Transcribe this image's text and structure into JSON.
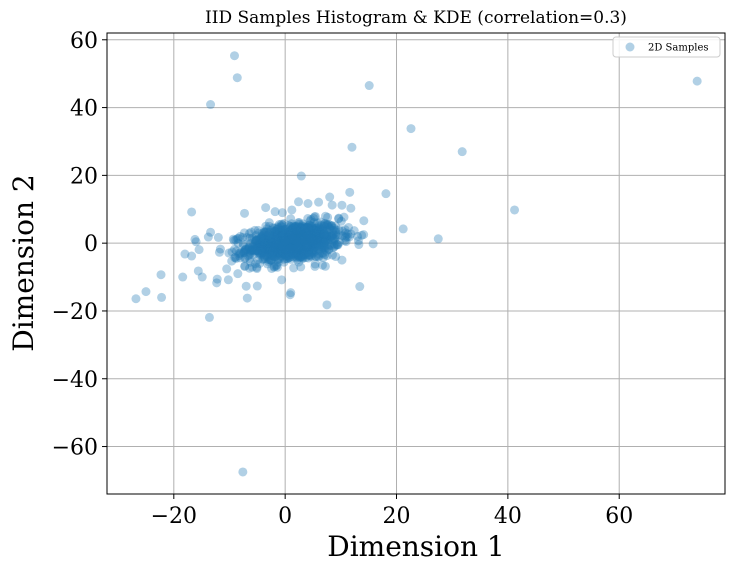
{
  "chart_data": {
    "type": "scatter",
    "title": "IID Samples Histogram & KDE (correlation=0.3)",
    "xlabel": "Dimension 1",
    "ylabel": "Dimension 2",
    "xlim": [
      -32,
      79
    ],
    "ylim": [
      -74,
      62
    ],
    "xticks": [
      -20,
      0,
      20,
      40,
      60
    ],
    "yticks": [
      -60,
      -40,
      -20,
      0,
      20,
      40,
      60
    ],
    "xtick_labels": [
      "−20",
      "0",
      "20",
      "40",
      "60"
    ],
    "ytick_labels": [
      "−60",
      "−40",
      "−20",
      "0",
      "20",
      "40",
      "60"
    ],
    "grid": true,
    "legend_position": "top-right",
    "series": [
      {
        "name": "2D Samples",
        "color": "#1f77b4",
        "alpha": 0.35,
        "points": [
          [
            74.0,
            47.8
          ],
          [
            41.2,
            9.8
          ],
          [
            31.8,
            27.0
          ],
          [
            27.5,
            1.3
          ],
          [
            22.6,
            33.8
          ],
          [
            21.2,
            4.2
          ],
          [
            18.1,
            14.6
          ],
          [
            15.8,
            -0.2
          ],
          [
            15.1,
            46.5
          ],
          [
            13.4,
            -12.8
          ],
          [
            12.0,
            28.3
          ],
          [
            11.6,
            15.0
          ],
          [
            7.5,
            -18.2
          ],
          [
            2.9,
            19.8
          ],
          [
            1.0,
            -14.6
          ],
          [
            0.9,
            -15.2
          ],
          [
            -7.6,
            -67.5
          ],
          [
            -9.1,
            55.3
          ],
          [
            -8.6,
            48.8
          ],
          [
            -13.4,
            40.9
          ],
          [
            -26.8,
            -16.4
          ],
          [
            -25.0,
            -14.3
          ],
          [
            -22.3,
            -9.3
          ],
          [
            -22.2,
            -16.0
          ],
          [
            -18.4,
            -10.0
          ],
          [
            -18.0,
            -3.2
          ],
          [
            -16.8,
            -3.8
          ],
          [
            -15.6,
            -8.2
          ],
          [
            -14.9,
            -10.0
          ],
          [
            -13.6,
            -21.9
          ],
          [
            -12.3,
            -11.7
          ],
          [
            -12.2,
            -10.6
          ],
          [
            -10.2,
            -10.8
          ],
          [
            -7.0,
            -12.7
          ],
          [
            -6.8,
            -16.2
          ],
          [
            -16.8,
            9.2
          ],
          [
            -7.3,
            8.8
          ],
          [
            -16.2,
            1.1
          ],
          [
            -16.0,
            0.4
          ],
          [
            -13.4,
            3.2
          ],
          [
            -12.0,
            1.7
          ],
          [
            -11.8,
            -2.7
          ],
          [
            -13.8,
            1.8
          ],
          [
            -10.5,
            -7.6
          ],
          [
            -9.6,
            -5.3
          ],
          [
            -8.5,
            -9.0
          ],
          [
            -6.4,
            -7.4
          ],
          [
            10.2,
            -5.0
          ],
          [
            8.5,
            -3.5
          ],
          [
            9.6,
            7.2
          ],
          [
            11.8,
            10.3
          ],
          [
            12.4,
            3.7
          ],
          [
            4.1,
            11.7
          ],
          [
            6.0,
            12.1
          ],
          [
            8.0,
            13.6
          ],
          [
            10.2,
            11.2
          ],
          [
            -3.5,
            10.5
          ],
          [
            -1.8,
            9.3
          ],
          [
            2.4,
            12.2
          ],
          [
            -2.0,
            -7.1
          ],
          [
            2.8,
            -7.0
          ],
          [
            6.7,
            -6.5
          ],
          [
            -4.6,
            -6.0
          ],
          [
            -0.2,
            -5.6
          ],
          [
            1.2,
            9.8
          ],
          [
            -0.5,
            9.0
          ],
          [
            13.0,
            2.0
          ]
        ],
        "cluster": {
          "count": 1100,
          "center": [
            1.5,
            0.3
          ],
          "std_x": 4.2,
          "std_y": 2.9,
          "correlation": 0.3
        }
      }
    ]
  }
}
